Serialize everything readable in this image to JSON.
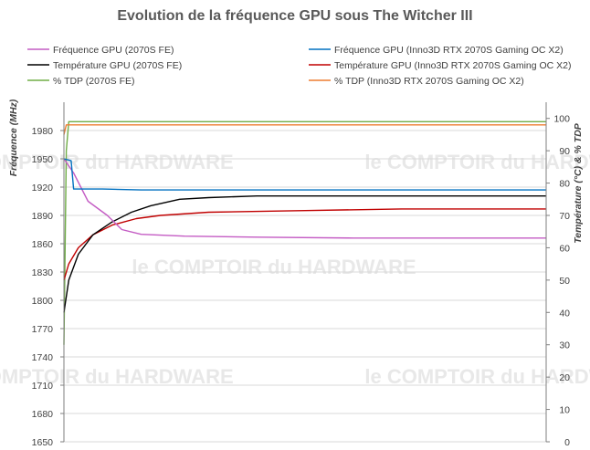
{
  "chart_data": {
    "type": "line",
    "title": "Evolution de la fréquence GPU sous The Witcher III",
    "watermark": [
      "le COMPTOIR du HARDWARE"
    ],
    "y_left": {
      "label": "Fréquence (MHz)",
      "range": [
        1650,
        2010
      ],
      "ticks": [
        1650,
        1680,
        1710,
        1740,
        1770,
        1800,
        1830,
        1860,
        1890,
        1920,
        1950,
        1980
      ]
    },
    "y_right": {
      "label": "Température (°C) & % TDP",
      "range": [
        0,
        105
      ],
      "ticks": [
        0,
        10,
        20,
        30,
        40,
        50,
        60,
        70,
        80,
        90,
        100
      ]
    },
    "x_range": [
      0,
      1000
    ],
    "legend": {
      "placement": "top",
      "entries": [
        "Fréquence GPU (2070S FE)",
        "Fréquence GPU (Inno3D RTX 2070S Gaming OC X2)",
        "Température GPU  (2070S FE)",
        "Température GPU  (Inno3D RTX 2070S Gaming OC X2)",
        "% TDP (2070S FE)",
        "% TDP (Inno3D RTX 2070S Gaming OC X2)"
      ]
    },
    "series": [
      {
        "name": "Fréquence GPU (2070S FE)",
        "axis": "left",
        "color": "#c45cc4",
        "points": [
          [
            0,
            1950
          ],
          [
            20,
            1935
          ],
          [
            50,
            1905
          ],
          [
            90,
            1890
          ],
          [
            120,
            1875
          ],
          [
            160,
            1870
          ],
          [
            250,
            1868
          ],
          [
            400,
            1867
          ],
          [
            600,
            1866
          ],
          [
            800,
            1866
          ],
          [
            1000,
            1866
          ]
        ]
      },
      {
        "name": "Fréquence GPU (Inno3D RTX 2070S Gaming OC X2)",
        "axis": "left",
        "color": "#0070c0",
        "points": [
          [
            0,
            1950
          ],
          [
            15,
            1948
          ],
          [
            20,
            1918
          ],
          [
            80,
            1918
          ],
          [
            160,
            1917
          ],
          [
            300,
            1917
          ],
          [
            600,
            1917
          ],
          [
            1000,
            1917
          ]
        ]
      },
      {
        "name": "Température GPU  (2070S FE)",
        "axis": "right",
        "color": "#000000",
        "points": [
          [
            0,
            40
          ],
          [
            10,
            50
          ],
          [
            30,
            58
          ],
          [
            60,
            64
          ],
          [
            100,
            68
          ],
          [
            140,
            71
          ],
          [
            180,
            73
          ],
          [
            240,
            75
          ],
          [
            300,
            75.5
          ],
          [
            400,
            76
          ],
          [
            600,
            76
          ],
          [
            1000,
            76
          ]
        ]
      },
      {
        "name": "Température GPU  (Inno3D RTX 2070S Gaming OC X2)",
        "axis": "right",
        "color": "#c00000",
        "points": [
          [
            0,
            50
          ],
          [
            10,
            55
          ],
          [
            30,
            60
          ],
          [
            60,
            64
          ],
          [
            100,
            67
          ],
          [
            150,
            69
          ],
          [
            200,
            70
          ],
          [
            300,
            71
          ],
          [
            500,
            71.5
          ],
          [
            700,
            72
          ],
          [
            1000,
            72
          ]
        ]
      },
      {
        "name": "% TDP (2070S FE)",
        "axis": "right",
        "color": "#70ad47",
        "points": [
          [
            0,
            30
          ],
          [
            5,
            90
          ],
          [
            10,
            99
          ],
          [
            1000,
            99
          ]
        ]
      },
      {
        "name": "% TDP (Inno3D RTX 2070S Gaming OC X2)",
        "axis": "right",
        "color": "#ed7d31",
        "points": [
          [
            0,
            95
          ],
          [
            5,
            98
          ],
          [
            1000,
            98
          ]
        ]
      }
    ]
  }
}
